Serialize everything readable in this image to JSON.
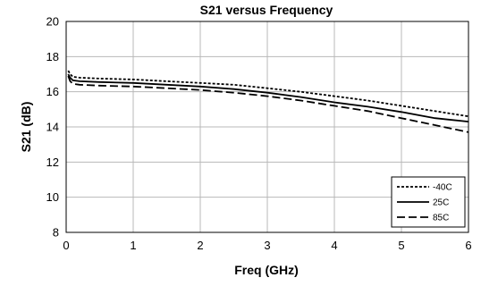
{
  "chart_data": {
    "type": "line",
    "title": "S21 versus Frequency",
    "xlabel": "Freq (GHz)",
    "ylabel": "S21 (dB)",
    "xlim": [
      0,
      6
    ],
    "ylim": [
      8,
      20
    ],
    "x_ticks": [
      "0",
      "1",
      "2",
      "3",
      "4",
      "5",
      "6"
    ],
    "y_ticks": [
      "8",
      "10",
      "12",
      "14",
      "16",
      "18",
      "20"
    ],
    "grid": true,
    "legend_position": "bottom-right",
    "series": [
      {
        "name": "-40C",
        "dash": "dotted",
        "x": [
          0.03,
          0.06,
          0.1,
          0.2,
          0.5,
          1.0,
          1.5,
          2.0,
          2.5,
          3.0,
          3.5,
          4.0,
          4.5,
          5.0,
          5.5,
          6.0
        ],
        "y": [
          17.2,
          17.0,
          16.85,
          16.8,
          16.75,
          16.7,
          16.6,
          16.5,
          16.4,
          16.2,
          16.0,
          15.75,
          15.5,
          15.2,
          14.9,
          14.6
        ]
      },
      {
        "name": "25C",
        "dash": "solid",
        "x": [
          0.03,
          0.06,
          0.1,
          0.2,
          0.5,
          1.0,
          1.5,
          2.0,
          2.5,
          3.0,
          3.5,
          4.0,
          4.5,
          5.0,
          5.5,
          6.0
        ],
        "y": [
          17.0,
          16.8,
          16.65,
          16.6,
          16.55,
          16.5,
          16.4,
          16.3,
          16.15,
          15.95,
          15.7,
          15.4,
          15.15,
          14.85,
          14.5,
          14.3
        ]
      },
      {
        "name": "85C",
        "dash": "dashed",
        "x": [
          0.03,
          0.06,
          0.1,
          0.2,
          0.5,
          1.0,
          1.5,
          2.0,
          2.5,
          3.0,
          3.5,
          4.0,
          4.5,
          5.0,
          5.5,
          6.0
        ],
        "y": [
          16.9,
          16.6,
          16.45,
          16.4,
          16.35,
          16.3,
          16.2,
          16.1,
          15.95,
          15.75,
          15.5,
          15.2,
          14.9,
          14.5,
          14.1,
          13.7
        ]
      }
    ]
  }
}
